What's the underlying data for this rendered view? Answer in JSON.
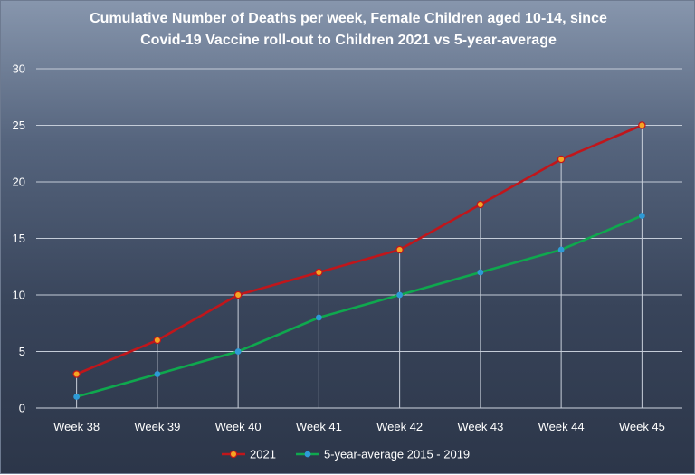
{
  "chart_data": {
    "type": "line",
    "title_lines": [
      "Cumulative Number of Deaths per week, Female Children aged 10-14, since",
      "Covid-19 Vaccine roll-out to Children 2021 vs 5-year-average"
    ],
    "xlabel": "",
    "ylabel": "",
    "categories": [
      "Week 38",
      "Week 39",
      "Week 40",
      "Week 41",
      "Week 42",
      "Week 43",
      "Week 44",
      "Week 45"
    ],
    "ylim": [
      0,
      30
    ],
    "yticks": [
      0,
      5,
      10,
      15,
      20,
      25,
      30
    ],
    "grid": true,
    "drop_lines": true,
    "legend_position": "bottom",
    "series": [
      {
        "name": "2021",
        "values": [
          3,
          6,
          10,
          12,
          14,
          18,
          22,
          25
        ],
        "line_color": "#c0161b",
        "marker_fill": "#f5a623",
        "marker_stroke": "#c0161b"
      },
      {
        "name": "5-year-average 2015 - 2019",
        "values": [
          1,
          3,
          5,
          8,
          10,
          12,
          14,
          17
        ],
        "line_color": "#0fa84e",
        "marker_fill": "#2e9ad6",
        "marker_stroke": "#2e9ad6"
      }
    ]
  }
}
